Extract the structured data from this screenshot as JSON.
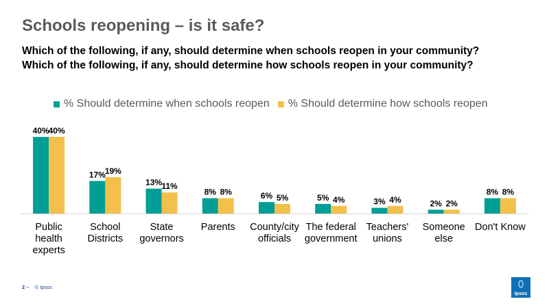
{
  "title": "Schools reopening – is it safe?",
  "questions": [
    "Which of the following, if any, should determine when schools reopen in your community?",
    "Which of the following, if any, should determine how schools reopen in your community?"
  ],
  "footer": {
    "page": "2 –",
    "copyright": "© Ipsos"
  },
  "logo_text": "Ipsos",
  "colors": {
    "series1": "#009e96",
    "series2": "#f2c04b",
    "axis": "#d9d9d9"
  },
  "chart_data": {
    "type": "bar",
    "categories": [
      [
        "Public",
        "health",
        "experts"
      ],
      [
        "School",
        "Districts"
      ],
      [
        "State",
        "governors"
      ],
      [
        "Parents"
      ],
      [
        "County/city",
        "officials"
      ],
      [
        "The federal",
        "government"
      ],
      [
        "Teachers'",
        "unions"
      ],
      [
        "Someone",
        "else"
      ],
      [
        "Don't Know"
      ]
    ],
    "series": [
      {
        "name": "% Should determine when schools reopen",
        "values": [
          40,
          17,
          13,
          8,
          6,
          5,
          3,
          2,
          8
        ]
      },
      {
        "name": "% Should determine how schools reopen",
        "values": [
          40,
          19,
          11,
          8,
          5,
          4,
          4,
          2,
          8
        ]
      }
    ],
    "value_suffix": "%",
    "legend_position": "top",
    "grid": false
  }
}
